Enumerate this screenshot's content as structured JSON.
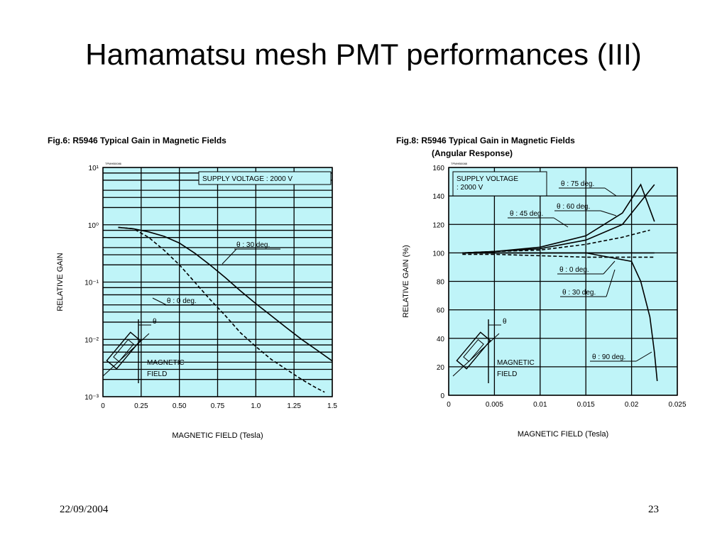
{
  "slide": {
    "title": "Hamamatsu mesh PMT performances (III)",
    "date": "22/09/2004",
    "page": "23"
  },
  "colors": {
    "plot_bg": "#bff4f8",
    "ink": "#000000"
  },
  "chart_data": [
    {
      "type": "line",
      "title": "Fig.6:  R5946 Typical Gain in Magnetic Fields",
      "note": "TPMHB0086",
      "xlabel": "MAGNETIC FIELD (Tesla)",
      "ylabel": "RELATIVE GAIN",
      "xlim": [
        0,
        1.5
      ],
      "ylim": [
        0.001,
        10
      ],
      "yscale": "log",
      "xticks": [
        0,
        0.25,
        0.5,
        0.75,
        1.0,
        1.25,
        1.5
      ],
      "xtick_labels": [
        "0",
        "0.25",
        "0.50",
        "0.75",
        "1.0",
        "1.25",
        "1.5"
      ],
      "yticks": [
        0.001,
        0.01,
        0.1,
        1,
        10
      ],
      "ytick_labels": [
        "10⁻³",
        "10⁻²",
        "10⁻¹",
        "10⁰",
        "10¹"
      ],
      "legend_box": "SUPPLY VOLTAGE : 2000 V",
      "inset_label": [
        "MAGNETIC",
        "FIELD"
      ],
      "inset_theta": "θ",
      "series": [
        {
          "name": "θ : 30 deg.",
          "style": "solid",
          "x": [
            0.1,
            0.2,
            0.3,
            0.4,
            0.5,
            0.6,
            0.7,
            0.8,
            0.9,
            1.0,
            1.1,
            1.2,
            1.3,
            1.4,
            1.5
          ],
          "y": [
            0.9,
            0.85,
            0.75,
            0.63,
            0.48,
            0.32,
            0.2,
            0.12,
            0.07,
            0.042,
            0.026,
            0.016,
            0.01,
            0.0065,
            0.0042
          ]
        },
        {
          "name": "θ : 0 deg.",
          "style": "dashed",
          "x": [
            0.1,
            0.2,
            0.3,
            0.4,
            0.5,
            0.6,
            0.7,
            0.8,
            0.9,
            1.0,
            1.1,
            1.2,
            1.3,
            1.4,
            1.45
          ],
          "y": [
            0.9,
            0.85,
            0.6,
            0.36,
            0.2,
            0.1,
            0.05,
            0.026,
            0.013,
            0.0075,
            0.0045,
            0.003,
            0.002,
            0.0014,
            0.0012
          ]
        }
      ]
    },
    {
      "type": "line",
      "title": "Fig.8:  R5946 Typical Gain in Magnetic Fields",
      "subtitle": "(Angular Response)",
      "note": "TPMHB0088",
      "xlabel": "MAGNETIC FIELD (Tesla)",
      "ylabel": "RELATIVE GAIN (%)",
      "xlim": [
        0,
        0.025
      ],
      "ylim": [
        0,
        160
      ],
      "xticks": [
        0,
        0.005,
        0.01,
        0.015,
        0.02,
        0.025
      ],
      "xtick_labels": [
        "0",
        "0.005",
        "0.01",
        "0.015",
        "0.02",
        "0.025"
      ],
      "yticks": [
        0,
        20,
        40,
        60,
        80,
        100,
        120,
        140,
        160
      ],
      "ytick_labels": [
        "0",
        "20",
        "40",
        "60",
        "80",
        "100",
        "120",
        "140",
        "160"
      ],
      "legend_box": [
        "SUPPLY VOLTAGE",
        ": 2000 V"
      ],
      "inset_label": [
        "MAGNETIC",
        "FIELD"
      ],
      "inset_theta": "θ",
      "series": [
        {
          "name": "θ : 75 deg.",
          "style": "solid",
          "x": [
            0.0015,
            0.005,
            0.01,
            0.015,
            0.019,
            0.021,
            0.0225
          ],
          "y": [
            100,
            101,
            104,
            112,
            128,
            148,
            122
          ]
        },
        {
          "name": "θ : 60 deg.",
          "style": "solid",
          "x": [
            0.0015,
            0.005,
            0.01,
            0.015,
            0.019,
            0.0225
          ],
          "y": [
            100,
            101,
            103,
            109,
            120,
            148
          ]
        },
        {
          "name": "θ : 45 deg.",
          "style": "dashed",
          "x": [
            0.0015,
            0.005,
            0.01,
            0.015,
            0.019,
            0.022
          ],
          "y": [
            100,
            101,
            102,
            106,
            111,
            116
          ]
        },
        {
          "name": "θ : 0 deg.",
          "style": "solid",
          "x": [
            0.0015,
            0.005,
            0.01,
            0.015,
            0.02,
            0.0225
          ],
          "y": [
            100,
            100,
            100,
            100,
            100,
            100
          ]
        },
        {
          "name": "θ : 30 deg.",
          "style": "dashed",
          "x": [
            0.0015,
            0.005,
            0.01,
            0.015,
            0.02,
            0.0225
          ],
          "y": [
            99,
            99,
            98,
            97,
            97,
            97
          ]
        },
        {
          "name": "θ : 90 deg.",
          "style": "solid",
          "x": [
            0.0015,
            0.005,
            0.01,
            0.015,
            0.02,
            0.021,
            0.022,
            0.0225,
            0.0228
          ],
          "y": [
            100,
            100,
            100,
            100,
            94,
            80,
            55,
            30,
            10
          ]
        }
      ]
    }
  ]
}
